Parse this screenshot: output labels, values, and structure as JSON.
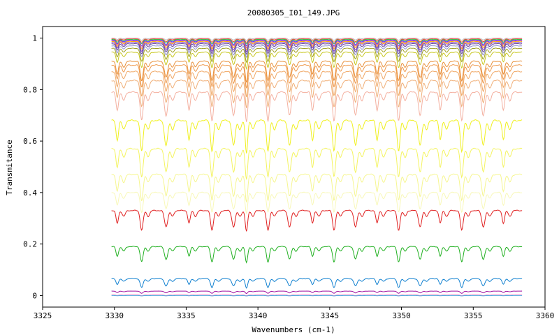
{
  "chart_data": {
    "type": "line",
    "title": "20080305_I01_149.JPG",
    "xlabel": "Wavenumbers (cm-1)",
    "ylabel": "Transmitance",
    "xlim": [
      3325,
      3360
    ],
    "ylim": [
      -0.045,
      1.045
    ],
    "xticks": [
      3325,
      3330,
      3335,
      3340,
      3345,
      3350,
      3355,
      3360
    ],
    "xtick_labels": [
      "3325",
      "3330",
      "3335",
      "3340",
      "3345",
      "3350",
      "3355",
      "3360"
    ],
    "yticks": [
      0,
      0.2,
      0.4,
      0.6,
      0.8,
      1
    ],
    "ytick_labels": [
      "0",
      "0.2",
      "0.4",
      "0.6",
      "0.8",
      "1"
    ],
    "x_range_of_data": [
      3329.8,
      3358.4
    ],
    "grid": false,
    "legend": "none",
    "absorption_lines_cm1": [
      3330.2,
      3331.9,
      3333.6,
      3335.2,
      3336.8,
      3338.3,
      3339.2,
      3340.7,
      3342.2,
      3343.8,
      3345.3,
      3346.8,
      3348.3,
      3349.8,
      3351.3,
      3352.7,
      3354.2,
      3355.7,
      3357.1
    ],
    "series": [
      {
        "color": "#c0c0c0",
        "baseline": 1.0,
        "depth": 0.01
      },
      {
        "color": "#ff4040",
        "baseline": 0.997,
        "depth": 0.015
      },
      {
        "color": "#40c040",
        "baseline": 0.995,
        "depth": 0.02
      },
      {
        "color": "#4040ff",
        "baseline": 0.992,
        "depth": 0.025
      },
      {
        "color": "#c040c0",
        "baseline": 0.99,
        "depth": 0.03
      },
      {
        "color": "#ffb000",
        "baseline": 0.987,
        "depth": 0.035
      },
      {
        "color": "#8040c0",
        "baseline": 0.983,
        "depth": 0.04
      },
      {
        "color": "#6b4a9a",
        "baseline": 0.978,
        "depth": 0.045
      },
      {
        "color": "#9090d0",
        "baseline": 0.97,
        "depth": 0.05
      },
      {
        "color": "#a0a020",
        "baseline": 0.96,
        "depth": 0.06
      },
      {
        "color": "#c8c820",
        "baseline": 0.945,
        "depth": 0.07
      },
      {
        "color": "#e8903a",
        "baseline": 0.91,
        "depth": 0.09
      },
      {
        "color": "#ee9a4e",
        "baseline": 0.895,
        "depth": 0.1
      },
      {
        "color": "#f0a866",
        "baseline": 0.87,
        "depth": 0.11
      },
      {
        "color": "#f0b07a",
        "baseline": 0.835,
        "depth": 0.12
      },
      {
        "color": "#f4b0a0",
        "baseline": 0.79,
        "depth": 0.13
      },
      {
        "color": "#f0f020",
        "baseline": 0.68,
        "depth": 0.14
      },
      {
        "color": "#f4f460",
        "baseline": 0.57,
        "depth": 0.13
      },
      {
        "color": "#f6f690",
        "baseline": 0.47,
        "depth": 0.12
      },
      {
        "color": "#f8f8b8",
        "baseline": 0.4,
        "depth": 0.09
      },
      {
        "color": "#e02020",
        "baseline": 0.33,
        "depth": 0.09
      },
      {
        "color": "#20b020",
        "baseline": 0.19,
        "depth": 0.07
      },
      {
        "color": "#1080d0",
        "baseline": 0.065,
        "depth": 0.04
      },
      {
        "color": "#a010a0",
        "baseline": 0.017,
        "depth": 0.01
      },
      {
        "color": "#ff70c0",
        "baseline": 0.002,
        "depth": 0.003
      },
      {
        "color": "#50b0e0",
        "baseline": 0.0,
        "depth": 0.002
      }
    ]
  }
}
